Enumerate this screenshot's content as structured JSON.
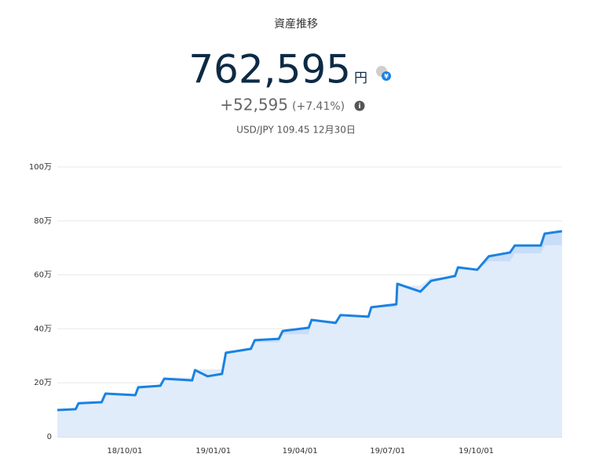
{
  "header": {
    "title": "資産推移",
    "value": "762,595",
    "unit": "円",
    "change": "+52,595",
    "change_pct": "(+7.41%)",
    "fx": "USD/JPY 109.45 12月30日"
  },
  "chart_data": {
    "type": "line",
    "area": true,
    "grid": true,
    "x": [
      "18/07/23",
      "18/08/11",
      "18/08/14",
      "18/09/07",
      "18/09/11",
      "18/10/12",
      "18/10/15",
      "18/11/07",
      "18/11/11",
      "18/12/10",
      "18/12/13",
      "18/12/26",
      "19/01/10",
      "19/01/14",
      "19/02/09",
      "19/02/13",
      "19/03/10",
      "19/03/14",
      "19/04/10",
      "19/04/13",
      "19/05/08",
      "19/05/13",
      "19/06/11",
      "19/06/14",
      "19/07/10",
      "19/07/11",
      "19/08/04",
      "19/08/15",
      "19/09/09",
      "19/09/12",
      "19/10/02",
      "19/10/14",
      "19/11/05",
      "19/11/10",
      "19/12/07",
      "19/12/11",
      "19/12/29"
    ],
    "series": [
      {
        "color": "#1a82e2",
        "values": [
          99000,
          102000,
          124000,
          128000,
          160000,
          154000,
          183000,
          189000,
          215000,
          209000,
          247000,
          224000,
          233000,
          311000,
          326000,
          358000,
          363000,
          392000,
          404000,
          433000,
          422000,
          451000,
          445000,
          480000,
          491000,
          567000,
          538000,
          578000,
          596000,
          628000,
          619000,
          669000,
          683000,
          709000,
          709000,
          753000,
          762000
        ]
      },
      {
        "color": "#e1ecfb",
        "values": [
          100000,
          100000,
          130000,
          130000,
          160000,
          160000,
          190000,
          190000,
          220000,
          220000,
          250000,
          250000,
          250000,
          320000,
          320000,
          350000,
          350000,
          380000,
          380000,
          430000,
          430000,
          450000,
          450000,
          480000,
          480000,
          560000,
          560000,
          590000,
          590000,
          620000,
          620000,
          650000,
          650000,
          680000,
          680000,
          710000,
          710000
        ]
      }
    ],
    "xlim": [
      "18/07/23",
      "19/12/30"
    ],
    "xticks": [
      "18/10/01",
      "19/01/01",
      "19/04/01",
      "19/07/01",
      "19/10/01"
    ],
    "ylim": [
      0,
      1000000
    ],
    "yticks": [
      0,
      {
        "value": 200000,
        "label": "20万"
      },
      {
        "value": 400000,
        "label": "40万"
      },
      {
        "value": 600000,
        "label": "60万"
      },
      {
        "value": 800000,
        "label": "80万"
      },
      {
        "value": 1000000,
        "label": "100万"
      }
    ]
  }
}
